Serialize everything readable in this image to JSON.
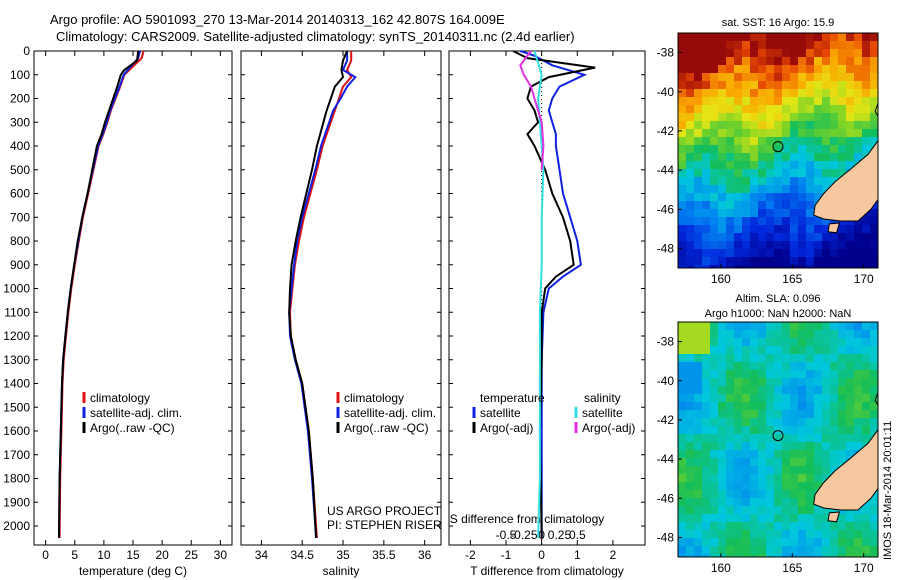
{
  "header": {
    "line1": "Argo profile: AO 5901093_270 13-Mar-2014 20140313_162 42.807S 164.009E",
    "line2": "Climatology: CARS2009. Satellite-adjusted climatology: synTS_20140311.nc (2.4d earlier)"
  },
  "stamp": "IMOS 18-Mar-2014 20:01:11",
  "colors": {
    "climatology": "#e01010",
    "satellite_temp": "#1020e0",
    "argo": "#000000",
    "satellite_sal": "#30e0e0",
    "argo_sal_adj": "#e030e0",
    "land": "#f7c8a0"
  },
  "chart_data": [
    {
      "type": "line",
      "id": "temperature",
      "xlabel": "temperature (deg C)",
      "ylabel": "",
      "xlim": [
        -2,
        32
      ],
      "ylim": [
        2080,
        0
      ],
      "xticks": [
        0,
        5,
        10,
        15,
        20,
        25,
        30
      ],
      "xtick_labels": [
        "0",
        "5",
        "10",
        "15",
        "20",
        "25",
        "30"
      ],
      "yticks": [
        0,
        100,
        200,
        300,
        400,
        500,
        600,
        700,
        800,
        900,
        1000,
        1100,
        1200,
        1300,
        1400,
        1500,
        1600,
        1700,
        1800,
        1900,
        2000
      ],
      "ytick_labels": [
        "0",
        "100",
        "200",
        "300",
        "400",
        "500",
        "600",
        "700",
        "800",
        "900",
        "1000",
        "1100",
        "1200",
        "1300",
        "1400",
        "1500",
        "1600",
        "1700",
        "1800",
        "1900",
        "2000"
      ],
      "legend": [
        "climatology",
        "satellite-adj. clim.",
        "Argo(..raw -QC)"
      ],
      "series": [
        {
          "name": "climatology",
          "color": "#e01010",
          "x": [
            16.8,
            16.5,
            15.2,
            13.5,
            12.8,
            12.0,
            11.2,
            10.6,
            9.9,
            9.1,
            8.2,
            7.3,
            6.4,
            5.7,
            5.0,
            4.4,
            3.9,
            3.5,
            3.1,
            2.9,
            2.7,
            2.5,
            2.4
          ],
          "y": [
            0,
            30,
            60,
            100,
            150,
            200,
            250,
            300,
            350,
            400,
            500,
            600,
            700,
            800,
            900,
            1000,
            1100,
            1200,
            1300,
            1400,
            1600,
            1800,
            2050
          ]
        },
        {
          "name": "satellite-adj. clim.",
          "color": "#1020e0",
          "x": [
            16.2,
            15.9,
            14.8,
            13.4,
            12.7,
            11.9,
            11.1,
            10.5,
            9.8,
            9.0,
            8.1,
            7.2,
            6.3,
            5.6,
            4.9,
            4.3,
            3.8,
            3.4,
            3.0,
            2.8,
            2.6,
            2.4,
            2.3
          ],
          "y": [
            0,
            30,
            60,
            100,
            150,
            200,
            250,
            300,
            350,
            400,
            500,
            600,
            700,
            800,
            900,
            1000,
            1100,
            1200,
            1300,
            1400,
            1600,
            1800,
            2050
          ]
        },
        {
          "name": "Argo(..raw -QC)",
          "color": "#000000",
          "x": [
            15.9,
            15.7,
            13.5,
            12.9,
            12.3,
            11.6,
            10.9,
            10.2,
            9.6,
            8.8,
            8.0,
            7.2,
            6.3,
            5.5,
            4.9,
            4.3,
            3.8,
            3.4,
            3.0,
            2.8,
            2.6,
            2.4,
            2.3
          ],
          "y": [
            0,
            40,
            80,
            100,
            150,
            200,
            250,
            300,
            350,
            400,
            500,
            600,
            700,
            800,
            900,
            1000,
            1100,
            1200,
            1300,
            1400,
            1600,
            1800,
            2050
          ]
        }
      ]
    },
    {
      "type": "line",
      "id": "salinity",
      "xlabel": "salinity",
      "ylabel": "",
      "xlim": [
        33.75,
        36.2
      ],
      "ylim": [
        2080,
        0
      ],
      "xticks": [
        34,
        34.5,
        35,
        35.5,
        36
      ],
      "xtick_labels": [
        "34",
        "34.5",
        "35",
        "35.5",
        "36"
      ],
      "legend": [
        "climatology",
        "satellite-adj. clim.",
        "Argo(..raw -QC)"
      ],
      "annotation": [
        "US ARGO PROJECT",
        "PI: STEPHEN RISER"
      ],
      "series": [
        {
          "name": "climatology",
          "color": "#e01010",
          "x": [
            35.1,
            35.1,
            35.05,
            35.1,
            35.0,
            34.95,
            34.9,
            34.85,
            34.8,
            34.75,
            34.68,
            34.6,
            34.52,
            34.46,
            34.41,
            34.38,
            34.35,
            34.36,
            34.42,
            34.5,
            34.58,
            34.63,
            34.68
          ],
          "y": [
            0,
            40,
            80,
            110,
            150,
            200,
            250,
            300,
            350,
            400,
            500,
            600,
            700,
            800,
            900,
            1000,
            1100,
            1200,
            1300,
            1400,
            1600,
            1800,
            2050
          ]
        },
        {
          "name": "satellite-adj. clim.",
          "color": "#1020e0",
          "x": [
            35.05,
            35.05,
            35.0,
            35.15,
            35.05,
            34.97,
            34.88,
            34.83,
            34.78,
            34.73,
            34.66,
            34.58,
            34.5,
            34.44,
            34.4,
            34.37,
            34.34,
            34.35,
            34.41,
            34.49,
            34.57,
            34.62,
            34.67
          ],
          "y": [
            0,
            40,
            80,
            110,
            150,
            200,
            250,
            300,
            350,
            400,
            500,
            600,
            700,
            800,
            900,
            1000,
            1100,
            1200,
            1300,
            1400,
            1600,
            1800,
            2050
          ]
        },
        {
          "name": "Argo(..raw -QC)",
          "color": "#000000",
          "x": [
            35.05,
            35.0,
            34.98,
            35.0,
            34.9,
            34.85,
            34.8,
            34.76,
            34.72,
            34.68,
            34.62,
            34.55,
            34.48,
            34.42,
            34.37,
            34.35,
            34.34,
            34.36,
            34.42,
            34.5,
            34.58,
            34.63,
            34.67
          ],
          "y": [
            0,
            40,
            80,
            110,
            150,
            200,
            250,
            300,
            350,
            400,
            500,
            600,
            700,
            800,
            900,
            1000,
            1100,
            1200,
            1300,
            1400,
            1600,
            1800,
            2050
          ]
        }
      ]
    },
    {
      "type": "line",
      "id": "difference",
      "xlabel": "T difference from climatology",
      "xlabel_top": "S difference from climatology",
      "ylabel": "",
      "xlim": [
        -2.6,
        2.9
      ],
      "ylim": [
        2080,
        0
      ],
      "xticks": [
        -2,
        -1,
        0,
        1,
        2
      ],
      "xtick_labels": [
        "-2",
        "-1",
        "0",
        "1",
        "2"
      ],
      "top_ticks": [
        -1,
        -0.5,
        0,
        0.5,
        1
      ],
      "top_tick_labels": [
        "-0.5",
        "-0.25",
        "0",
        "0.25",
        "0.5"
      ],
      "legend_groups": [
        {
          "title": "temperature",
          "items": [
            "satellite",
            "Argo(-adj)"
          ]
        },
        {
          "title": "salinity",
          "items": [
            "satellite",
            "Argo(-adj)"
          ]
        }
      ],
      "series": [
        {
          "name": "temperature satellite",
          "color": "#1020e0",
          "x": [
            -0.6,
            -0.2,
            0.3,
            1.2,
            0.5,
            0.3,
            0.2,
            0.3,
            0.4,
            0.4,
            0.5,
            0.6,
            0.8,
            1.0,
            1.1,
            0.6,
            0.2,
            0.05,
            0.0,
            0.0,
            0.0,
            0.0
          ],
          "y": [
            0,
            20,
            60,
            100,
            150,
            200,
            250,
            300,
            350,
            400,
            500,
            600,
            700,
            800,
            900,
            950,
            1000,
            1100,
            1300,
            1600,
            1900,
            2050
          ]
        },
        {
          "name": "temperature Argo(-adj)",
          "color": "#000000",
          "x": [
            -0.8,
            -0.4,
            1.5,
            0.2,
            -0.3,
            -0.4,
            -0.2,
            -0.1,
            -0.4,
            -0.2,
            0.1,
            0.3,
            0.6,
            0.8,
            0.9,
            0.4,
            0.1,
            0.0,
            0.0,
            -0.05,
            0.0
          ],
          "y": [
            0,
            30,
            70,
            110,
            150,
            200,
            250,
            300,
            350,
            400,
            500,
            600,
            700,
            800,
            900,
            950,
            1000,
            1100,
            1300,
            1600,
            2050
          ]
        },
        {
          "name": "salinity satellite",
          "color": "#30e0e0",
          "x": [
            -0.2,
            -0.1,
            0.0,
            -0.1,
            -0.05,
            0.0,
            0.05,
            0.0,
            0.0,
            -0.05,
            -0.05,
            -0.05,
            -0.1
          ],
          "y": [
            0,
            50,
            100,
            200,
            300,
            400,
            500,
            700,
            900,
            1100,
            1400,
            1800,
            2050
          ]
        },
        {
          "name": "salinity Argo(-adj)",
          "color": "#e030e0",
          "x": [
            -0.3,
            -0.6,
            -0.5,
            -0.3,
            -0.2,
            -0.1,
            0.0,
            0.05,
            0.0
          ],
          "y": [
            0,
            60,
            100,
            150,
            200,
            250,
            300,
            400,
            500
          ]
        }
      ]
    },
    {
      "type": "heatmap",
      "id": "sst-map",
      "title": "sat. SST: 16 Argo: 15.9",
      "xlim": [
        157,
        171
      ],
      "ylim": [
        -49,
        -37
      ],
      "xticks": [
        160,
        165,
        170
      ],
      "xtick_labels": [
        "160",
        "165",
        "170"
      ],
      "yticks": [
        -38,
        -40,
        -42,
        -44,
        -46,
        -48
      ],
      "ytick_labels": [
        "-38",
        "-40",
        "-42",
        "-44",
        "-46",
        "-48"
      ],
      "marker": {
        "lon": 164.0,
        "lat": -42.8
      }
    },
    {
      "type": "heatmap",
      "id": "sla-map",
      "title": "Altim. SLA: 0.096",
      "subtitle": "Argo h1000: NaN h2000: NaN",
      "xlim": [
        157,
        171
      ],
      "ylim": [
        -49,
        -37
      ],
      "xticks": [
        160,
        165,
        170
      ],
      "xtick_labels": [
        "160",
        "165",
        "170"
      ],
      "yticks": [
        -38,
        -40,
        -42,
        -44,
        -46,
        -48
      ],
      "ytick_labels": [
        "-38",
        "-40",
        "-42",
        "-44",
        "-46",
        "-48"
      ],
      "marker": {
        "lon": 164.0,
        "lat": -42.8
      }
    }
  ]
}
